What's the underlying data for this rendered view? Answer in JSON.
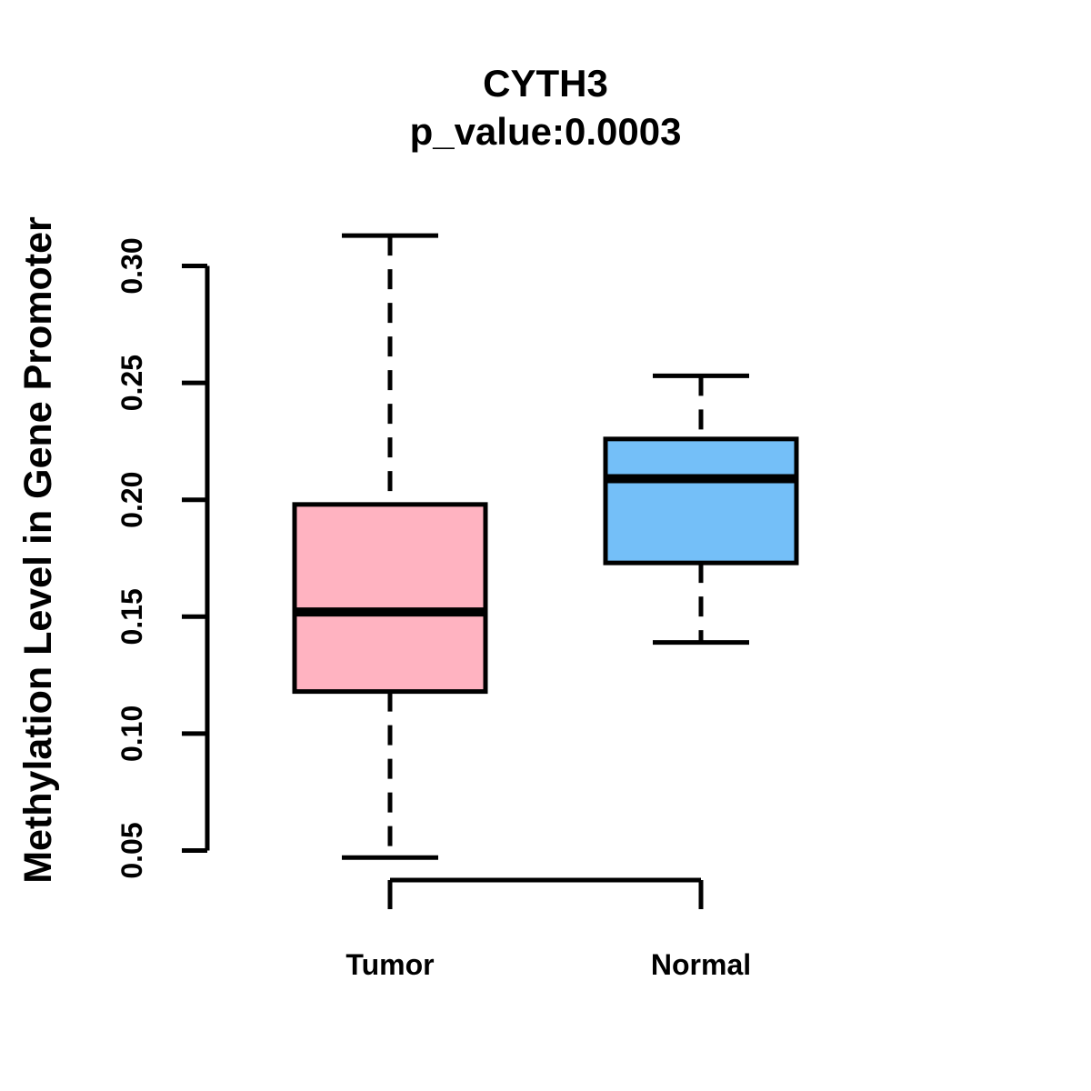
{
  "title": "CYTH3",
  "subtitle": "p_value:0.0003",
  "chart_data": {
    "type": "boxplot",
    "title": "CYTH3",
    "subtitle": "p_value:0.0003",
    "xlabel": "",
    "ylabel": "Methylation Level in Gene Promoter",
    "ylim": [
      0.05,
      0.3
    ],
    "yticks": [
      0.05,
      0.1,
      0.15,
      0.2,
      0.25,
      0.3
    ],
    "ytick_labels": [
      "0.05",
      "0.10",
      "0.15",
      "0.20",
      "0.25",
      "0.30"
    ],
    "categories": [
      "Tumor",
      "Normal"
    ],
    "grid": "off",
    "legend": "none",
    "series": [
      {
        "name": "Tumor",
        "fill_color": "#FFB3C1",
        "whisker_low": 0.047,
        "q1": 0.118,
        "median": 0.152,
        "q3": 0.198,
        "whisker_high": 0.313
      },
      {
        "name": "Normal",
        "fill_color": "#74BFF8",
        "whisker_low": 0.139,
        "q1": 0.173,
        "median": 0.209,
        "q3": 0.226,
        "whisker_high": 0.253
      }
    ],
    "stroke_color": "#000000",
    "background_color": "#FFFFFF"
  }
}
